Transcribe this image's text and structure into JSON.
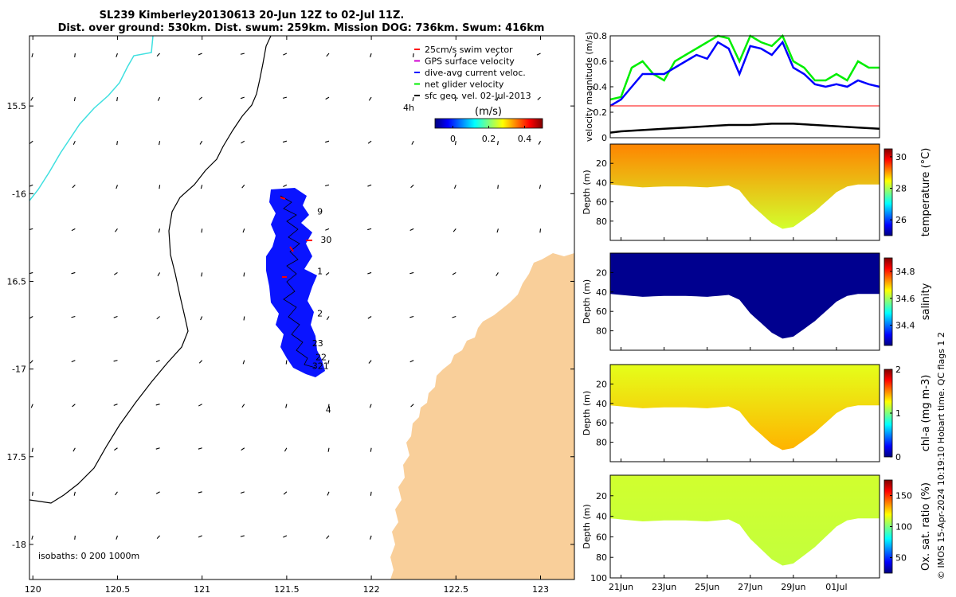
{
  "title": {
    "line1": "SL239 Kimberley20130613 20-Jun 12Z to 02-Jul 11Z.",
    "line2": "Dist. over ground: 530km. Dist. swum: 259km. Mission DOG: 736km. Swum: 416km"
  },
  "footer_text": "© IMOS 15-Apr-2024 10:19:10 Hobart time. QC flags 1  2",
  "colors": {
    "land": "#f9cf9a",
    "coast_line": "#000000",
    "isobath_200": "#000000",
    "isobath_0": "#3fe0e0",
    "swim_vector": "#ff0000",
    "gps_velocity": "#d000d0",
    "dive_avg": "#0000ff",
    "net_glider": "#00ee00",
    "geo_vel": "#000000",
    "track_swath": "#0a14ff"
  },
  "chart_data": [
    {
      "type": "map",
      "name": "track-map",
      "xlim": [
        119.98,
        123.2
      ],
      "ylim": [
        -18.2,
        -15.1
      ],
      "x_ticks": [
        120,
        120.5,
        121,
        121.5,
        122,
        122.5,
        123
      ],
      "x_tick_labels": [
        "120",
        "120.5",
        "121",
        "121.5",
        "122",
        "122.5",
        "123"
      ],
      "y_ticks": [
        -15.5,
        -16,
        -16.5,
        -17,
        -17.5,
        -18
      ],
      "y_tick_labels": [
        "15.5",
        "-16",
        "16.5",
        "-17",
        "17.5",
        "-18"
      ],
      "legend": {
        "position": "top-right",
        "entries": [
          "25cm/s swim vector",
          "GPS surface velocity",
          "dive-avg current veloc.",
          "net glider velocity",
          "sfc geo. vel. 02-Jul-2013"
        ],
        "colors": [
          "#ff0000",
          "#d000d0",
          "#0000ff",
          "#00ee00",
          "#000000"
        ]
      },
      "colorbar": {
        "label": "(m/s)",
        "lim": [
          -0.1,
          0.5
        ],
        "ticks": [
          0,
          0.2,
          0.4
        ],
        "tick_labels": [
          "0",
          "0.2",
          "0.4"
        ],
        "colormap": "jet"
      },
      "isobaths_note": "isobaths: 0   200  1000m",
      "time_label": "4h",
      "track_labels": [
        {
          "text": "9",
          "lon": 121.68,
          "lat": -16.12
        },
        {
          "text": "30",
          "lon": 121.7,
          "lat": -16.28
        },
        {
          "text": "1",
          "lon": 121.68,
          "lat": -16.46
        },
        {
          "text": "2",
          "lon": 121.68,
          "lat": -16.7
        },
        {
          "text": "23",
          "lon": 121.65,
          "lat": -16.87
        },
        {
          "text": "22",
          "lon": 121.67,
          "lat": -16.95
        },
        {
          "text": "321",
          "lon": 121.65,
          "lat": -17.0
        },
        {
          "text": "4",
          "lon": 121.73,
          "lat": -17.25
        }
      ]
    },
    {
      "type": "line",
      "name": "velocity-magnitude",
      "ylabel": "velocity magnitude (m/s)",
      "xlim": [
        20.5,
        33.0
      ],
      "ylim": [
        0,
        0.8
      ],
      "y_ticks": [
        0,
        0.2,
        0.4,
        0.6,
        0.8
      ],
      "y_tick_labels": [
        "0",
        "0.2",
        "0.4",
        "0.6",
        "0.8"
      ],
      "series": [
        {
          "color": "#00ee00",
          "x": [
            20.5,
            21,
            21.5,
            22,
            22.5,
            23,
            23.5,
            24,
            24.5,
            25,
            25.5,
            26,
            26.5,
            27,
            27.5,
            28,
            28.5,
            29,
            29.5,
            30,
            30.5,
            31,
            31.5,
            32,
            32.5,
            33
          ],
          "y": [
            0.3,
            0.32,
            0.55,
            0.6,
            0.5,
            0.45,
            0.6,
            0.65,
            0.7,
            0.75,
            0.8,
            0.78,
            0.6,
            0.8,
            0.75,
            0.72,
            0.8,
            0.6,
            0.55,
            0.45,
            0.45,
            0.5,
            0.45,
            0.6,
            0.55,
            0.55
          ]
        },
        {
          "color": "#0000ff",
          "x": [
            20.5,
            21,
            21.5,
            22,
            22.5,
            23,
            23.5,
            24,
            24.5,
            25,
            25.5,
            26,
            26.5,
            27,
            27.5,
            28,
            28.5,
            29,
            29.5,
            30,
            30.5,
            31,
            31.5,
            32,
            32.5,
            33
          ],
          "y": [
            0.25,
            0.3,
            0.4,
            0.5,
            0.5,
            0.5,
            0.55,
            0.6,
            0.65,
            0.62,
            0.75,
            0.7,
            0.5,
            0.72,
            0.7,
            0.65,
            0.75,
            0.55,
            0.5,
            0.42,
            0.4,
            0.42,
            0.4,
            0.45,
            0.42,
            0.4
          ]
        },
        {
          "color": "#ff0000",
          "x": [
            20.5,
            33.0
          ],
          "y": [
            0.25,
            0.25
          ]
        },
        {
          "color": "#000000",
          "x": [
            20.5,
            21,
            22,
            23,
            24,
            25,
            26,
            27,
            28,
            29,
            30,
            31,
            32,
            33
          ],
          "y": [
            0.04,
            0.05,
            0.06,
            0.07,
            0.08,
            0.09,
            0.1,
            0.1,
            0.11,
            0.11,
            0.1,
            0.09,
            0.08,
            0.07
          ]
        }
      ]
    },
    {
      "type": "heatmap",
      "name": "temperature-section",
      "ylabel": "Depth (m)",
      "colorbar_label": "temperature (°C)",
      "ylim": [
        0,
        100
      ],
      "y_ticks": [
        20,
        40,
        60,
        80
      ],
      "y_tick_labels": [
        "20",
        "40",
        "60",
        "80"
      ],
      "clim": [
        25,
        30.5
      ],
      "cb_ticks": [
        26,
        28,
        30
      ],
      "cb_tick_labels": [
        "26",
        "28",
        "30"
      ],
      "surface_value": 29.1,
      "deep_value": 28.2
    },
    {
      "type": "heatmap",
      "name": "salinity-section",
      "ylabel": "Depth (m)",
      "colorbar_label": "salinity",
      "ylim": [
        0,
        100
      ],
      "y_ticks": [
        20,
        40,
        60,
        80
      ],
      "y_tick_labels": [
        "20",
        "40",
        "60",
        "80"
      ],
      "clim": [
        34.25,
        34.9
      ],
      "cb_ticks": [
        34.4,
        34.6,
        34.8
      ],
      "cb_tick_labels": [
        "34.4",
        "34.6",
        "34.8"
      ],
      "surface_value": 34.26,
      "deep_value": 34.26
    },
    {
      "type": "heatmap",
      "name": "chla-section",
      "ylabel": "Depth (m)",
      "colorbar_label": "chl-a (mg m-3)",
      "ylim": [
        0,
        100
      ],
      "y_ticks": [
        20,
        40,
        60,
        80
      ],
      "y_tick_labels": [
        "20",
        "40",
        "60",
        "80"
      ],
      "clim": [
        0,
        2
      ],
      "cb_ticks": [
        0,
        1,
        2
      ],
      "cb_tick_labels": [
        "0",
        "1",
        "2"
      ],
      "surface_value": 1.2,
      "deep_value": 1.4
    },
    {
      "type": "heatmap",
      "name": "oxygen-section",
      "ylabel": "Depth (m)",
      "colorbar_label": "Ox. sat. ratio (%)",
      "ylim": [
        0,
        100
      ],
      "y_ticks": [
        20,
        40,
        60,
        80,
        100
      ],
      "y_tick_labels": [
        "20",
        "40",
        "60",
        "80",
        "100"
      ],
      "clim": [
        25,
        175
      ],
      "cb_ticks": [
        50,
        100,
        150
      ],
      "cb_tick_labels": [
        "50",
        "100",
        "150"
      ],
      "surface_value": 112,
      "deep_value": 110,
      "x_ticks": [
        21,
        23,
        25,
        27,
        29,
        31
      ],
      "x_tick_labels": [
        "21Jun",
        "23Jun",
        "25Jun",
        "27Jun",
        "29Jun",
        "01Jul"
      ],
      "xlim": [
        20.5,
        33.0
      ]
    }
  ]
}
